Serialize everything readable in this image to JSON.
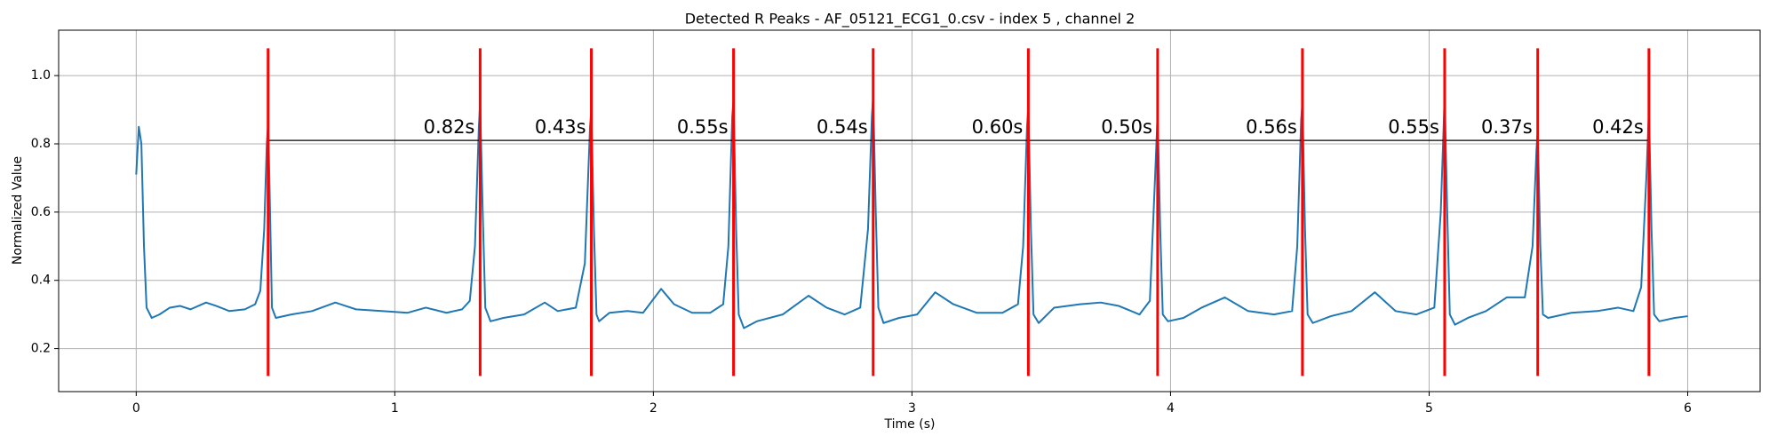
{
  "chart_data": {
    "type": "line",
    "title": "Detected R Peaks - AF_05121_ECG1_0.csv - index 5 , channel 2",
    "xlabel": "Time (s)",
    "ylabel": "Normalized Value",
    "xlim": [
      -0.3,
      6.28
    ],
    "ylim": [
      0.074,
      1.133
    ],
    "xticks": [
      0,
      1,
      2,
      3,
      4,
      5,
      6
    ],
    "yticks": [
      0.2,
      0.4,
      0.6,
      0.8,
      {
        "value": 1.0,
        "label": "1.0"
      }
    ],
    "grid": true,
    "series": [
      {
        "color": "#1f77b4",
        "x": [
          0,
          0.01,
          0.02,
          0.03,
          0.04,
          0.06,
          0.09,
          0.13,
          0.17,
          0.21,
          0.27,
          0.31,
          0.36,
          0.42,
          0.46,
          0.48,
          0.495,
          0.505,
          0.51,
          0.515,
          0.525,
          0.54,
          0.6,
          0.68,
          0.77,
          0.85,
          0.95,
          1.05,
          1.12,
          1.2,
          1.26,
          1.29,
          1.31,
          1.325,
          1.33,
          1.34,
          1.35,
          1.37,
          1.42,
          1.5,
          1.58,
          1.63,
          1.7,
          1.735,
          1.755,
          1.76,
          1.77,
          1.78,
          1.79,
          1.83,
          1.9,
          1.96,
          2.03,
          2.08,
          2.15,
          2.22,
          2.27,
          2.29,
          2.305,
          2.31,
          2.32,
          2.33,
          2.35,
          2.4,
          2.5,
          2.6,
          2.67,
          2.74,
          2.8,
          2.83,
          2.845,
          2.85,
          2.86,
          2.87,
          2.89,
          2.95,
          3.02,
          3.09,
          3.16,
          3.25,
          3.35,
          3.41,
          3.43,
          3.445,
          3.45,
          3.46,
          3.47,
          3.49,
          3.55,
          3.65,
          3.73,
          3.8,
          3.88,
          3.92,
          3.94,
          3.95,
          3.96,
          3.97,
          3.99,
          4.05,
          4.12,
          4.21,
          4.3,
          4.4,
          4.47,
          4.49,
          4.505,
          4.51,
          4.52,
          4.53,
          4.55,
          4.62,
          4.7,
          4.79,
          4.87,
          4.95,
          5.02,
          5.045,
          5.06,
          5.07,
          5.08,
          5.1,
          5.15,
          5.22,
          5.3,
          5.37,
          5.4,
          5.415,
          5.42,
          5.43,
          5.44,
          5.46,
          5.55,
          5.65,
          5.73,
          5.79,
          5.82,
          5.84,
          5.85,
          5.86,
          5.87,
          5.89,
          5.95,
          6.0
        ],
        "values": [
          0.71,
          0.85,
          0.8,
          0.5,
          0.32,
          0.29,
          0.3,
          0.32,
          0.325,
          0.315,
          0.335,
          0.325,
          0.31,
          0.315,
          0.33,
          0.37,
          0.55,
          0.8,
          0.86,
          0.7,
          0.32,
          0.29,
          0.3,
          0.31,
          0.335,
          0.315,
          0.31,
          0.305,
          0.32,
          0.305,
          0.315,
          0.34,
          0.5,
          0.85,
          0.92,
          0.6,
          0.32,
          0.28,
          0.29,
          0.3,
          0.335,
          0.31,
          0.32,
          0.45,
          0.85,
          0.9,
          0.55,
          0.3,
          0.28,
          0.305,
          0.31,
          0.305,
          0.375,
          0.33,
          0.305,
          0.305,
          0.33,
          0.5,
          0.88,
          0.93,
          0.55,
          0.3,
          0.26,
          0.28,
          0.3,
          0.355,
          0.32,
          0.3,
          0.32,
          0.55,
          0.88,
          0.94,
          0.6,
          0.32,
          0.275,
          0.29,
          0.3,
          0.365,
          0.33,
          0.305,
          0.305,
          0.33,
          0.5,
          0.85,
          0.91,
          0.55,
          0.3,
          0.275,
          0.32,
          0.33,
          0.335,
          0.325,
          0.3,
          0.34,
          0.7,
          0.89,
          0.55,
          0.3,
          0.28,
          0.29,
          0.32,
          0.35,
          0.31,
          0.3,
          0.31,
          0.5,
          0.87,
          0.92,
          0.55,
          0.3,
          0.275,
          0.295,
          0.31,
          0.365,
          0.31,
          0.3,
          0.32,
          0.6,
          0.94,
          0.6,
          0.3,
          0.27,
          0.29,
          0.31,
          0.35,
          0.35,
          0.5,
          0.78,
          0.84,
          0.5,
          0.3,
          0.29,
          0.305,
          0.31,
          0.32,
          0.31,
          0.38,
          0.7,
          0.9,
          0.55,
          0.3,
          0.28,
          0.29,
          0.295
        ]
      }
    ],
    "peaks": {
      "color": "red",
      "x": [
        0.51,
        1.33,
        1.76,
        2.31,
        2.85,
        3.45,
        3.95,
        4.51,
        5.06,
        5.42,
        5.85
      ],
      "ymin": 0.12,
      "ymax": 1.08
    },
    "interval_line": {
      "color": "black",
      "y": 0.81
    },
    "annotations": [
      "0.82s",
      "0.43s",
      "0.55s",
      "0.54s",
      "0.60s",
      "0.50s",
      "0.56s",
      "0.55s",
      "0.37s",
      "0.42s"
    ]
  }
}
